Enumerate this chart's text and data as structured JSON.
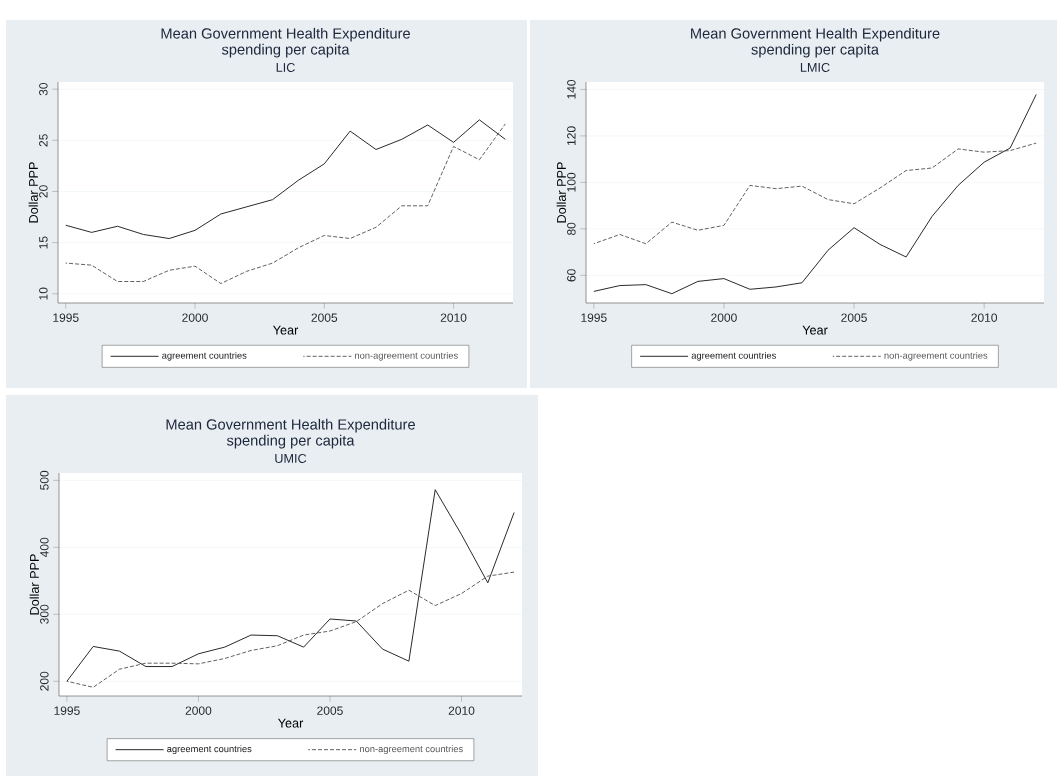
{
  "chart_data": [
    {
      "type": "line",
      "title": "Mean Government Health Expenditure spending per capita",
      "subtitle": "LIC",
      "xlabel": "Year",
      "ylabel": "Dollar PPP",
      "x": [
        1995,
        1996,
        1997,
        1998,
        1999,
        2000,
        2001,
        2002,
        2003,
        2004,
        2005,
        2006,
        2007,
        2008,
        2009,
        2010,
        2011,
        2012
      ],
      "series": [
        {
          "name": "agreement countries",
          "color": "#1a1a1a",
          "line_style": "solid",
          "values": [
            16.7,
            16.0,
            16.6,
            15.8,
            15.4,
            16.2,
            17.8,
            18.5,
            19.2,
            21.1,
            22.7,
            25.9,
            24.1,
            25.1,
            26.5,
            24.8,
            27.0,
            25.1
          ]
        },
        {
          "name": "non-agreement countries",
          "color": "#555555",
          "line_style": "dashed",
          "values": [
            13.0,
            12.8,
            11.2,
            11.2,
            12.3,
            12.7,
            11.0,
            12.2,
            13.0,
            14.5,
            15.7,
            15.4,
            16.5,
            18.6,
            18.6,
            24.4,
            23.1,
            26.6
          ]
        }
      ],
      "xlim": [
        1994.7,
        2012.3
      ],
      "ylim": [
        9.1,
        30.7
      ],
      "xticks": [
        1995,
        2000,
        2005,
        2010
      ],
      "yticks": [
        10,
        15,
        20,
        25,
        30
      ],
      "grid": "y",
      "legend": "bottom"
    },
    {
      "type": "line",
      "title": "Mean Government Health Expenditure spending per capita",
      "subtitle": "LMIC",
      "xlabel": "Year",
      "ylabel": "Dollar PPP",
      "x": [
        1995,
        1996,
        1997,
        1998,
        1999,
        2000,
        2001,
        2002,
        2003,
        2004,
        2005,
        2006,
        2007,
        2008,
        2009,
        2010,
        2011,
        2012
      ],
      "series": [
        {
          "name": "agreement countries",
          "color": "#1a1a1a",
          "line_style": "solid",
          "values": [
            53.1,
            55.6,
            56.0,
            52.1,
            57.4,
            58.6,
            54.0,
            55.0,
            56.8,
            70.8,
            80.5,
            73.3,
            67.9,
            85.4,
            98.7,
            108.7,
            114.8,
            137.8
          ]
        },
        {
          "name": "non-agreement countries",
          "color": "#555555",
          "line_style": "dashed",
          "values": [
            73.6,
            77.6,
            73.6,
            82.9,
            79.4,
            81.5,
            98.7,
            97.3,
            98.4,
            92.6,
            90.8,
            97.6,
            105.1,
            106.2,
            114.4,
            113.0,
            113.7,
            116.9
          ]
        }
      ],
      "xlim": [
        1994.7,
        2012.3
      ],
      "ylim": [
        48.1,
        143.2
      ],
      "xticks": [
        1995,
        2000,
        2005,
        2010
      ],
      "yticks": [
        60,
        80,
        100,
        120,
        140
      ],
      "grid": "y",
      "legend": "bottom"
    },
    {
      "type": "line",
      "title": "Mean Government Health Expenditure spending per capita",
      "subtitle": "UMIC",
      "xlabel": "Year",
      "ylabel": "Dollar PPP",
      "x": [
        1995,
        1996,
        1997,
        1998,
        1999,
        2000,
        2001,
        2002,
        2003,
        2004,
        2005,
        2006,
        2007,
        2008,
        2009,
        2010,
        2011,
        2012
      ],
      "series": [
        {
          "name": "agreement countries",
          "color": "#1a1a1a",
          "line_style": "solid",
          "values": [
            200,
            252,
            245,
            222,
            222,
            241,
            251,
            269,
            268,
            251,
            293,
            290,
            248,
            230,
            486,
            419,
            347,
            452
          ]
        },
        {
          "name": "non-agreement countries",
          "color": "#555555",
          "line_style": "dashed",
          "values": [
            200,
            191,
            218,
            227,
            227,
            226,
            234,
            246,
            253,
            269,
            275,
            289,
            316,
            336,
            313,
            331,
            357,
            363
          ]
        }
      ],
      "xlim": [
        1994.7,
        2012.3
      ],
      "ylim": [
        178,
        511
      ],
      "xticks": [
        1995,
        2000,
        2005,
        2010
      ],
      "yticks": [
        200,
        300,
        400,
        500
      ],
      "grid": "y",
      "legend": "bottom"
    }
  ]
}
